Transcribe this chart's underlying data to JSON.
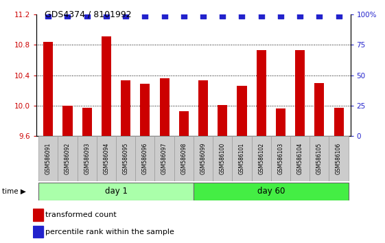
{
  "title": "GDS4374 / 8101992",
  "categories": [
    "GSM586091",
    "GSM586092",
    "GSM586093",
    "GSM586094",
    "GSM586095",
    "GSM586096",
    "GSM586097",
    "GSM586098",
    "GSM586099",
    "GSM586100",
    "GSM586101",
    "GSM586102",
    "GSM586103",
    "GSM586104",
    "GSM586105",
    "GSM586106"
  ],
  "bar_values": [
    10.84,
    10.0,
    9.97,
    10.91,
    10.33,
    10.29,
    10.36,
    9.93,
    10.33,
    10.01,
    10.26,
    10.73,
    9.96,
    10.73,
    10.3,
    9.97
  ],
  "percentile_values": [
    99,
    99,
    99,
    99,
    99,
    99,
    99,
    99,
    99,
    99,
    99,
    99,
    99,
    99,
    99,
    99
  ],
  "bar_color": "#cc0000",
  "dot_color": "#2222cc",
  "ylim_left": [
    9.6,
    11.2
  ],
  "ylim_right": [
    0,
    100
  ],
  "yticks_left": [
    9.6,
    10.0,
    10.4,
    10.8,
    11.2
  ],
  "yticks_right": [
    0,
    25,
    50,
    75,
    100
  ],
  "ytick_labels_right": [
    "0",
    "25",
    "50",
    "75",
    "100%"
  ],
  "grid_values": [
    10.0,
    10.4,
    10.8
  ],
  "day1_indices": [
    0,
    7
  ],
  "day60_indices": [
    8,
    15
  ],
  "day1_label": "day 1",
  "day60_label": "day 60",
  "time_label": "time",
  "legend1_label": "transformed count",
  "legend2_label": "percentile rank within the sample",
  "bg_color": "#ffffff",
  "xticklabel_bg": "#cccccc",
  "day1_color": "#aaffaa",
  "day60_color": "#44ee44",
  "bar_width": 0.5,
  "dot_marker_size": 36
}
